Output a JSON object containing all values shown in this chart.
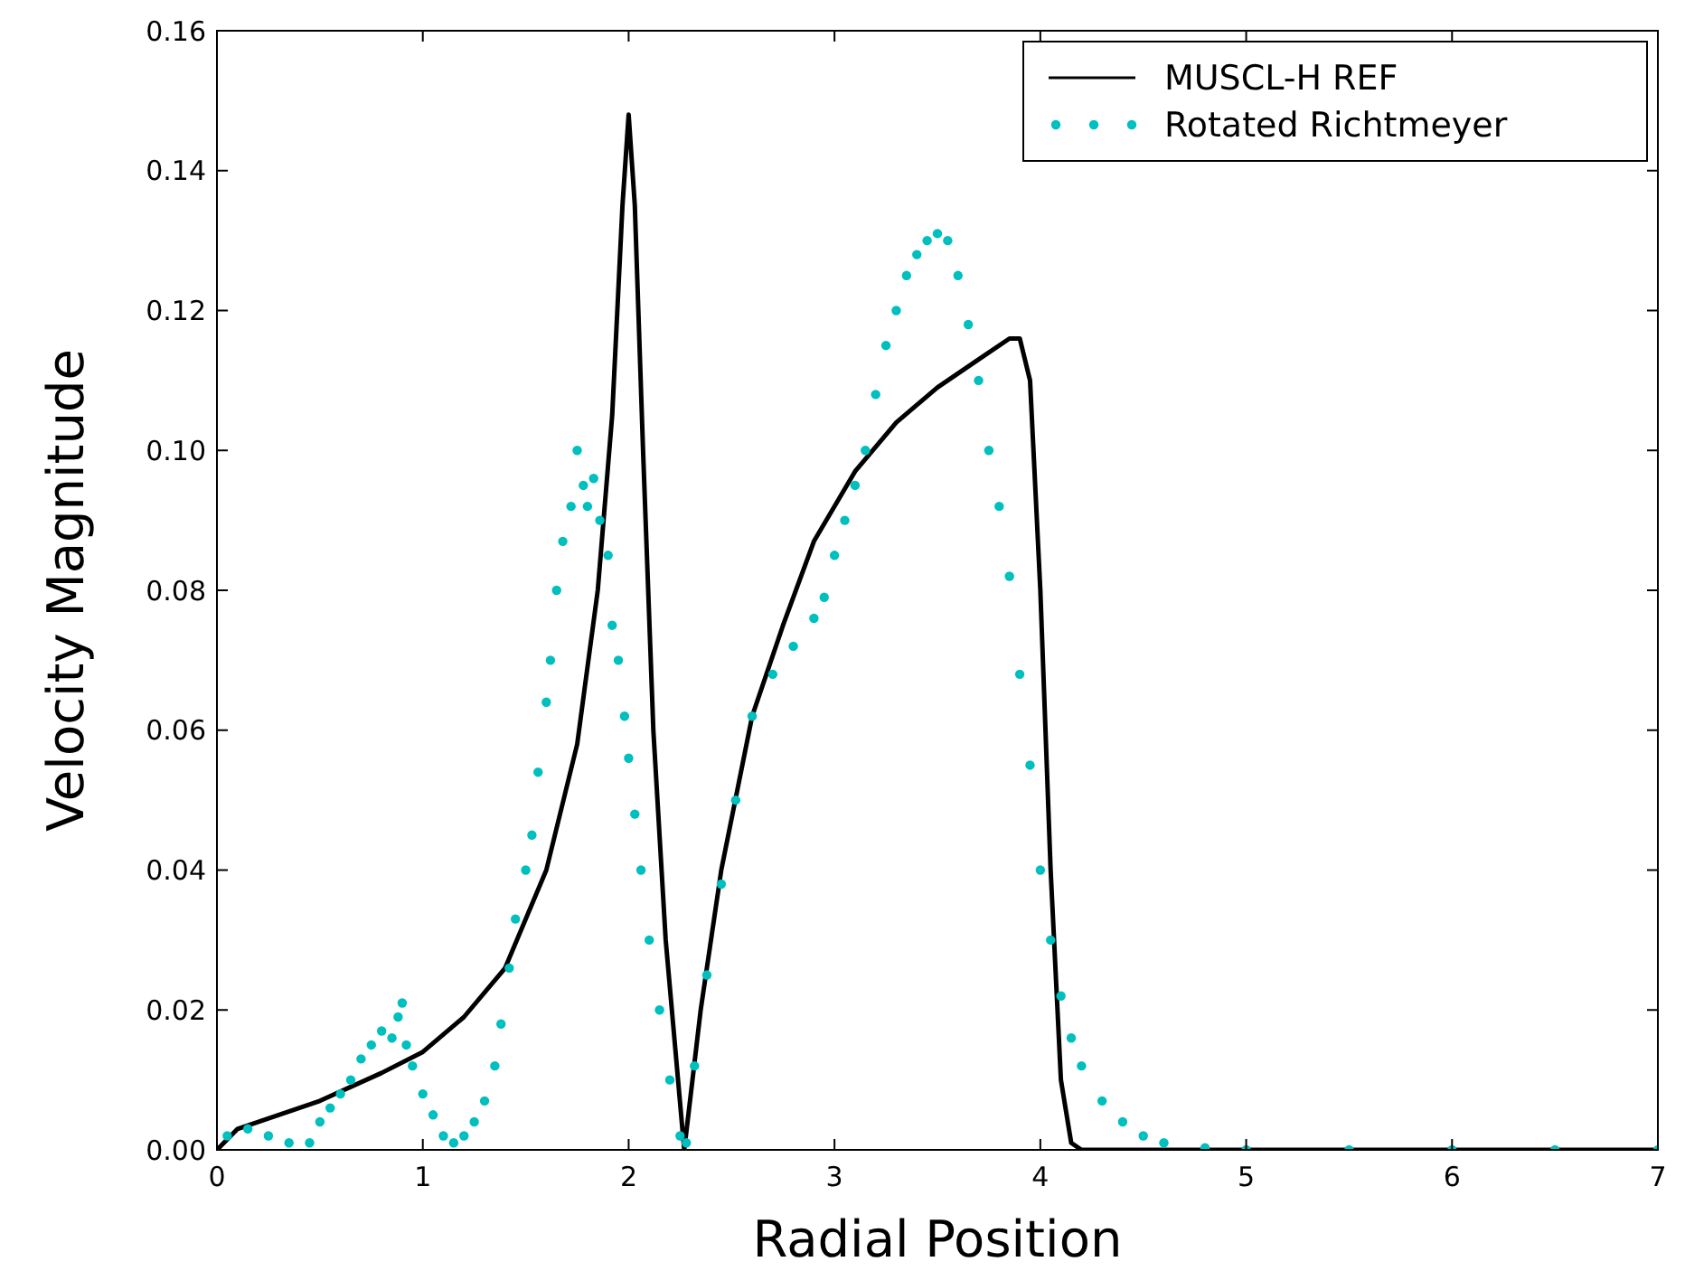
{
  "chart_data": {
    "type": "line",
    "xlabel": "Radial Position",
    "ylabel": "Velocity Magnitude",
    "xlim": [
      0,
      7
    ],
    "ylim": [
      0,
      0.16
    ],
    "xticks": [
      0,
      1,
      2,
      3,
      4,
      5,
      6,
      7
    ],
    "yticks": [
      {
        "value": 0,
        "label": "0.00"
      },
      {
        "value": 0.02,
        "label": "0.02"
      },
      {
        "value": 0.04,
        "label": "0.04"
      },
      {
        "value": 0.06,
        "label": "0.06"
      },
      {
        "value": 0.08,
        "label": "0.08"
      },
      {
        "value": 0.1,
        "label": "0.10"
      },
      {
        "value": 0.12,
        "label": "0.12"
      },
      {
        "value": 0.14,
        "label": "0.14"
      },
      {
        "value": 0.16,
        "label": "0.16"
      }
    ],
    "legend": "top right",
    "grid": false,
    "series": [
      {
        "name": "MUSCL-H REF",
        "color": "#000000",
        "line_style": "solid",
        "marker": "none",
        "x": [
          0,
          0.1,
          0.3,
          0.5,
          0.8,
          1.0,
          1.2,
          1.4,
          1.6,
          1.75,
          1.85,
          1.92,
          1.97,
          2.0,
          2.03,
          2.07,
          2.12,
          2.18,
          2.27,
          2.35,
          2.45,
          2.6,
          2.75,
          2.9,
          3.1,
          3.3,
          3.5,
          3.7,
          3.85,
          3.9,
          3.95,
          4.0,
          4.05,
          4.1,
          4.15,
          4.2,
          5,
          7
        ],
        "values": [
          0,
          0.003,
          0.005,
          0.007,
          0.011,
          0.014,
          0.019,
          0.026,
          0.04,
          0.058,
          0.08,
          0.105,
          0.135,
          0.148,
          0.135,
          0.1,
          0.06,
          0.03,
          0,
          0.02,
          0.04,
          0.062,
          0.075,
          0.087,
          0.097,
          0.104,
          0.109,
          0.113,
          0.116,
          0.116,
          0.11,
          0.08,
          0.04,
          0.01,
          0.001,
          0,
          0,
          0
        ]
      },
      {
        "name": "Rotated Richtmeyer",
        "type": "scatter",
        "color": "#00bfbf",
        "marker": "circle",
        "x": [
          0.05,
          0.15,
          0.25,
          0.35,
          0.45,
          0.5,
          0.55,
          0.6,
          0.65,
          0.7,
          0.75,
          0.8,
          0.85,
          0.88,
          0.9,
          0.92,
          0.95,
          1.0,
          1.05,
          1.1,
          1.15,
          1.2,
          1.25,
          1.3,
          1.35,
          1.38,
          1.42,
          1.45,
          1.5,
          1.53,
          1.56,
          1.6,
          1.62,
          1.65,
          1.68,
          1.72,
          1.75,
          1.78,
          1.8,
          1.83,
          1.86,
          1.9,
          1.92,
          1.95,
          1.98,
          2.0,
          2.03,
          2.06,
          2.1,
          2.15,
          2.2,
          2.25,
          2.28,
          2.32,
          2.38,
          2.45,
          2.52,
          2.6,
          2.7,
          2.8,
          2.9,
          2.95,
          3.0,
          3.05,
          3.1,
          3.15,
          3.2,
          3.25,
          3.3,
          3.35,
          3.4,
          3.45,
          3.5,
          3.55,
          3.6,
          3.65,
          3.7,
          3.75,
          3.8,
          3.85,
          3.9,
          3.95,
          4.0,
          4.05,
          4.1,
          4.15,
          4.2,
          4.3,
          4.4,
          4.5,
          4.6,
          4.8,
          5.0,
          5.5,
          6.0,
          6.5,
          7.0
        ],
        "values": [
          0.002,
          0.003,
          0.002,
          0.001,
          0.001,
          0.004,
          0.006,
          0.008,
          0.01,
          0.013,
          0.015,
          0.017,
          0.016,
          0.019,
          0.021,
          0.015,
          0.012,
          0.008,
          0.005,
          0.002,
          0.001,
          0.002,
          0.004,
          0.007,
          0.012,
          0.018,
          0.026,
          0.033,
          0.04,
          0.045,
          0.054,
          0.064,
          0.07,
          0.08,
          0.087,
          0.092,
          0.1,
          0.095,
          0.092,
          0.096,
          0.09,
          0.085,
          0.075,
          0.07,
          0.062,
          0.056,
          0.048,
          0.04,
          0.03,
          0.02,
          0.01,
          0.002,
          0.001,
          0.012,
          0.025,
          0.038,
          0.05,
          0.062,
          0.068,
          0.072,
          0.076,
          0.079,
          0.085,
          0.09,
          0.095,
          0.1,
          0.108,
          0.115,
          0.12,
          0.125,
          0.128,
          0.13,
          0.131,
          0.13,
          0.125,
          0.118,
          0.11,
          0.1,
          0.092,
          0.082,
          0.068,
          0.055,
          0.04,
          0.03,
          0.022,
          0.016,
          0.012,
          0.007,
          0.004,
          0.002,
          0.001,
          0.0003,
          0,
          0,
          0,
          0,
          0
        ]
      }
    ]
  }
}
